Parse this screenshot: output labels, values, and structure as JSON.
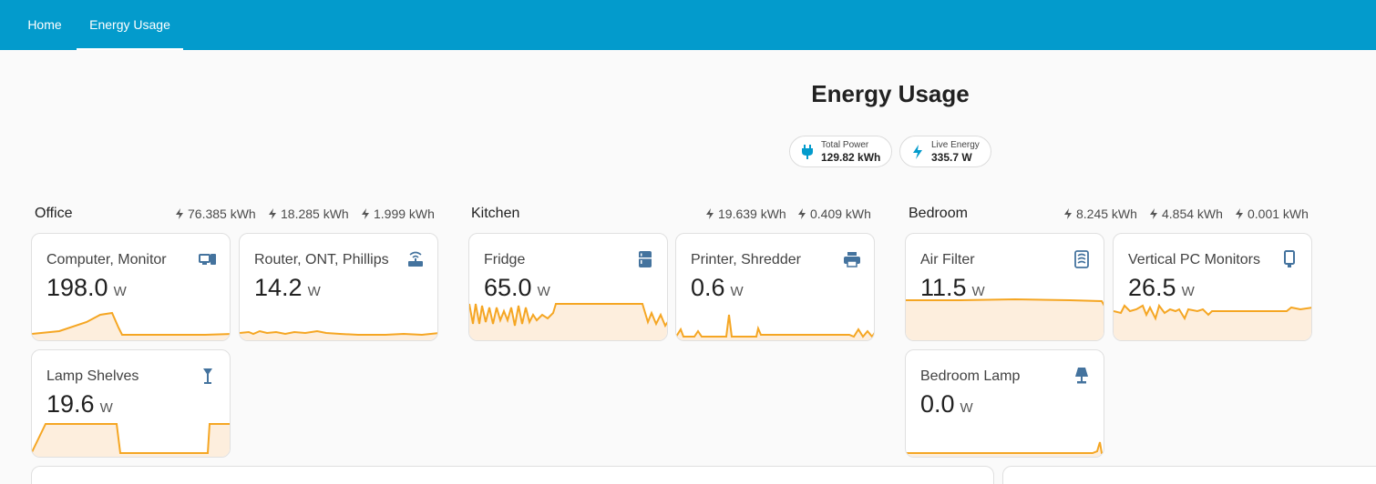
{
  "nav": {
    "tabs": [
      {
        "label": "Home"
      },
      {
        "label": "Energy Usage"
      }
    ]
  },
  "page": {
    "title": "Energy Usage"
  },
  "chips": [
    {
      "label": "Total Power",
      "value": "129.82 kWh",
      "icon": "plug-icon"
    },
    {
      "label": "Live Energy",
      "value": "335.7 W",
      "icon": "lightning-icon"
    }
  ],
  "colors": {
    "header": "#039bcc",
    "accent": "#f5a623",
    "icon": "#44739e"
  },
  "sections": [
    {
      "title": "Office",
      "stats": [
        "76.385 kWh",
        "18.285 kWh",
        "1.999 kWh"
      ],
      "cards": [
        {
          "name": "Computer, Monitor",
          "value": "198.0",
          "unit": "W",
          "icon": "monitor-desktop-icon"
        },
        {
          "name": "Router, ONT, Phillips",
          "value": "14.2",
          "unit": "W",
          "icon": "router-icon"
        },
        {
          "name": "Lamp Shelves",
          "value": "19.6",
          "unit": "W",
          "icon": "floor-lamp-icon"
        }
      ]
    },
    {
      "title": "Kitchen",
      "stats": [
        "19.639 kWh",
        "0.409 kWh"
      ],
      "cards": [
        {
          "name": "Fridge",
          "value": "65.0",
          "unit": "W",
          "icon": "fridge-icon"
        },
        {
          "name": "Printer, Shredder",
          "value": "0.6",
          "unit": "W",
          "icon": "printer-icon"
        }
      ]
    },
    {
      "title": "Bedroom",
      "stats": [
        "8.245 kWh",
        "4.854 kWh",
        "0.001 kWh"
      ],
      "cards": [
        {
          "name": "Air Filter",
          "value": "11.5",
          "unit": "W",
          "icon": "air-filter-icon"
        },
        {
          "name": "Vertical PC Monitors",
          "value": "26.5",
          "unit": "W",
          "icon": "tablet-icon"
        },
        {
          "name": "Bedroom Lamp",
          "value": "0.0",
          "unit": "W",
          "icon": "table-lamp-icon"
        }
      ]
    }
  ]
}
